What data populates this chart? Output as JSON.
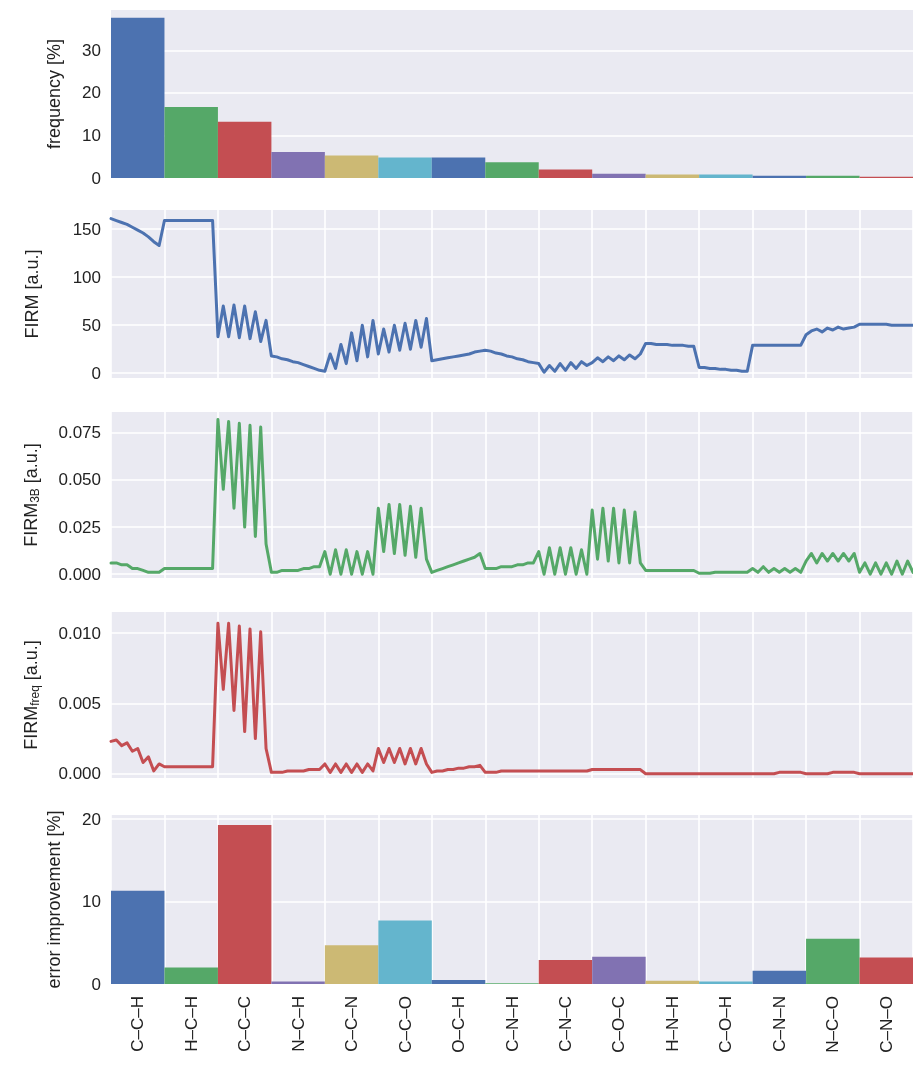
{
  "chart_data": [
    {
      "type": "bar",
      "ylabel": "frequency [%]",
      "categories": [
        null,
        null,
        null,
        null,
        null,
        null,
        null,
        null,
        null,
        null,
        null,
        null,
        null,
        null,
        null
      ],
      "values": [
        37.7,
        16.7,
        13.2,
        6.1,
        5.3,
        4.8,
        4.8,
        3.7,
        2.0,
        1.0,
        0.8,
        0.8,
        0.5,
        0.5,
        0.3
      ],
      "colors": [
        "#4c72b0",
        "#55a868",
        "#c44e52",
        "#8172b2",
        "#ccb974",
        "#64b5cd",
        "#4c72b0",
        "#55a868",
        "#c44e52",
        "#8172b2",
        "#ccb974",
        "#64b5cd",
        "#4c72b0",
        "#55a868",
        "#c44e52"
      ],
      "ylim": [
        0,
        39.5
      ],
      "yticks": [
        0,
        10,
        20,
        30
      ],
      "grid": "y",
      "tick_labels": "y"
    },
    {
      "type": "line",
      "ylabel": "FIRM [a.u.]",
      "categories": [
        null,
        null,
        null,
        null,
        null,
        null,
        null,
        null,
        null,
        null,
        null,
        null,
        null,
        null,
        null,
        null,
        null,
        null,
        null,
        null,
        null,
        null,
        null,
        null,
        null,
        null,
        null,
        null,
        null,
        null,
        null,
        null,
        null,
        null,
        null,
        null,
        null,
        null,
        null,
        null,
        null,
        null,
        null,
        null,
        null,
        null,
        null,
        null,
        null,
        null,
        null,
        null,
        null,
        null,
        null,
        null,
        null,
        null,
        null,
        null,
        null,
        null,
        null,
        null,
        null,
        null,
        null,
        null,
        null,
        null,
        null,
        null,
        null,
        null,
        null,
        null,
        null,
        null,
        null,
        null,
        null,
        null,
        null,
        null,
        null,
        null,
        null,
        null,
        null,
        null,
        null,
        null,
        null,
        null,
        null,
        null,
        null,
        null,
        null,
        null,
        null,
        null,
        null,
        null,
        null,
        null,
        null,
        null,
        null,
        null,
        null,
        null,
        null,
        null,
        null,
        null,
        null,
        null,
        null,
        null,
        null,
        null,
        null,
        null,
        null,
        null,
        null,
        null,
        null,
        null,
        null,
        null,
        null,
        null,
        null,
        null,
        null,
        null,
        null,
        null,
        null,
        null,
        null,
        null,
        null,
        null,
        null,
        null,
        null,
        null,
        null
      ],
      "ylim": [
        -5,
        170
      ],
      "yticks": [
        0,
        50,
        100,
        150
      ],
      "grid": true,
      "tick_labels": "y",
      "series": [
        {
          "color": "#4c72b0",
          "values": [
            161,
            159,
            157,
            155,
            152,
            149,
            146,
            142,
            137,
            133,
            159,
            159,
            159,
            159,
            159,
            159,
            159,
            159,
            159,
            159,
            38,
            70,
            38,
            71,
            37,
            70,
            36,
            64,
            33,
            55,
            18,
            17,
            15,
            14,
            12,
            11,
            9,
            7,
            5,
            3,
            2,
            20,
            5,
            30,
            10,
            42,
            13,
            50,
            17,
            55,
            20,
            46,
            22,
            50,
            24,
            52,
            25,
            55,
            27,
            57,
            13,
            14,
            15,
            16,
            17,
            18,
            19,
            20,
            22,
            23,
            24,
            23,
            21,
            20,
            18,
            17,
            15,
            14,
            12,
            11,
            10,
            1,
            8,
            2,
            10,
            3,
            11,
            5,
            12,
            8,
            11,
            16,
            12,
            17,
            13,
            18,
            14,
            19,
            15,
            20,
            31,
            31,
            30,
            30,
            30,
            29,
            29,
            29,
            28,
            28,
            6,
            6,
            5,
            5,
            4,
            4,
            3,
            3,
            2,
            2,
            29,
            29,
            29,
            29,
            29,
            29,
            29,
            29,
            29,
            29,
            40,
            44,
            46,
            43,
            47,
            45,
            48,
            46,
            47,
            48,
            51,
            51,
            51,
            51,
            51,
            51,
            50,
            50,
            50,
            50,
            50
          ]
        }
      ]
    },
    {
      "type": "line",
      "ylabel": "FIRM$_{3B}$ [a.u.]",
      "categories": [
        null,
        null,
        null,
        null,
        null,
        null,
        null,
        null,
        null,
        null,
        null,
        null,
        null,
        null,
        null,
        null,
        null,
        null,
        null,
        null,
        null,
        null,
        null,
        null,
        null,
        null,
        null,
        null,
        null,
        null,
        null,
        null,
        null,
        null,
        null,
        null,
        null,
        null,
        null,
        null,
        null,
        null,
        null,
        null,
        null,
        null,
        null,
        null,
        null,
        null,
        null,
        null,
        null,
        null,
        null,
        null,
        null,
        null,
        null,
        null,
        null,
        null,
        null,
        null,
        null,
        null,
        null,
        null,
        null,
        null,
        null,
        null,
        null,
        null,
        null,
        null,
        null,
        null,
        null,
        null,
        null,
        null,
        null,
        null,
        null,
        null,
        null,
        null,
        null,
        null,
        null,
        null,
        null,
        null,
        null,
        null,
        null,
        null,
        null,
        null,
        null,
        null,
        null,
        null,
        null,
        null,
        null,
        null,
        null,
        null,
        null,
        null,
        null,
        null,
        null,
        null,
        null,
        null,
        null,
        null,
        null,
        null,
        null,
        null,
        null,
        null,
        null,
        null,
        null,
        null,
        null,
        null,
        null,
        null,
        null,
        null,
        null,
        null,
        null,
        null,
        null,
        null,
        null,
        null,
        null,
        null,
        null,
        null,
        null,
        null,
        null
      ],
      "ylim": [
        -0.002,
        0.086
      ],
      "yticks": [
        {
          "value": 0,
          "label": "0.000"
        },
        0.025,
        {
          "value": 0.05,
          "label": "0.050"
        },
        0.075
      ],
      "grid": true,
      "tick_labels": "y",
      "series": [
        {
          "color": "#55a868",
          "values": [
            0.006,
            0.006,
            0.005,
            0.005,
            0.003,
            0.003,
            0.002,
            0.001,
            0.001,
            0.001,
            0.003,
            0.003,
            0.003,
            0.003,
            0.003,
            0.003,
            0.003,
            0.003,
            0.003,
            0.003,
            0.082,
            0.045,
            0.081,
            0.035,
            0.08,
            0.025,
            0.079,
            0.02,
            0.078,
            0.016,
            0.001,
            0.001,
            0.002,
            0.002,
            0.002,
            0.002,
            0.003,
            0.003,
            0.004,
            0.004,
            0.012,
            0.0,
            0.013,
            0.0,
            0.013,
            0.0,
            0.012,
            0.0,
            0.012,
            0.0,
            0.035,
            0.012,
            0.037,
            0.011,
            0.037,
            0.01,
            0.036,
            0.009,
            0.035,
            0.008,
            0.001,
            0.002,
            0.003,
            0.004,
            0.005,
            0.006,
            0.007,
            0.008,
            0.009,
            0.011,
            0.003,
            0.003,
            0.003,
            0.004,
            0.004,
            0.004,
            0.005,
            0.005,
            0.006,
            0.006,
            0.012,
            0.0,
            0.014,
            0.0,
            0.014,
            0.0,
            0.014,
            0.0,
            0.013,
            0.0,
            0.034,
            0.008,
            0.035,
            0.007,
            0.035,
            0.006,
            0.034,
            0.006,
            0.033,
            0.006,
            0.002,
            0.002,
            0.002,
            0.002,
            0.002,
            0.002,
            0.002,
            0.002,
            0.002,
            0.002,
            0.0005,
            0.0005,
            0.0005,
            0.001,
            0.001,
            0.001,
            0.001,
            0.001,
            0.001,
            0.001,
            0.003,
            0.001,
            0.004,
            0.001,
            0.003,
            0.001,
            0.003,
            0.001,
            0.003,
            0.001,
            0.007,
            0.011,
            0.006,
            0.011,
            0.007,
            0.011,
            0.007,
            0.011,
            0.007,
            0.011,
            0.001,
            0.006,
            0.0,
            0.006,
            0.0,
            0.006,
            0.0,
            0.007,
            0.0,
            0.007,
            0.001
          ]
        }
      ]
    },
    {
      "type": "line",
      "ylabel": "FIRM$_{freq}$ [a.u.]",
      "categories": [
        null,
        null,
        null,
        null,
        null,
        null,
        null,
        null,
        null,
        null,
        null,
        null,
        null,
        null,
        null,
        null,
        null,
        null,
        null,
        null,
        null,
        null,
        null,
        null,
        null,
        null,
        null,
        null,
        null,
        null,
        null,
        null,
        null,
        null,
        null,
        null,
        null,
        null,
        null,
        null,
        null,
        null,
        null,
        null,
        null,
        null,
        null,
        null,
        null,
        null,
        null,
        null,
        null,
        null,
        null,
        null,
        null,
        null,
        null,
        null,
        null,
        null,
        null,
        null,
        null,
        null,
        null,
        null,
        null,
        null,
        null,
        null,
        null,
        null,
        null,
        null,
        null,
        null,
        null,
        null,
        null,
        null,
        null,
        null,
        null,
        null,
        null,
        null,
        null,
        null,
        null,
        null,
        null,
        null,
        null,
        null,
        null,
        null,
        null,
        null,
        null,
        null,
        null,
        null,
        null,
        null,
        null,
        null,
        null,
        null,
        null,
        null,
        null,
        null,
        null,
        null,
        null,
        null,
        null,
        null,
        null,
        null,
        null,
        null,
        null,
        null,
        null,
        null,
        null,
        null,
        null,
        null,
        null,
        null,
        null,
        null,
        null,
        null,
        null,
        null,
        null,
        null,
        null,
        null,
        null,
        null,
        null,
        null,
        null,
        null,
        null
      ],
      "ylim": [
        -0.0003,
        0.0115
      ],
      "yticks": [
        {
          "value": 0,
          "label": "0.000"
        },
        0.005,
        {
          "value": 0.01,
          "label": "0.010"
        }
      ],
      "grid": true,
      "tick_labels": "y",
      "series": [
        {
          "color": "#c44e52",
          "values": [
            0.0023,
            0.0024,
            0.002,
            0.0022,
            0.0016,
            0.0018,
            0.0008,
            0.0012,
            0.0002,
            0.0007,
            0.0005,
            0.0005,
            0.0005,
            0.0005,
            0.0005,
            0.0005,
            0.0005,
            0.0005,
            0.0005,
            0.0005,
            0.0107,
            0.006,
            0.0107,
            0.0045,
            0.0105,
            0.003,
            0.0103,
            0.0025,
            0.0101,
            0.0018,
            0.0001,
            0.0001,
            0.0001,
            0.0002,
            0.0002,
            0.0002,
            0.0002,
            0.0003,
            0.0003,
            0.0003,
            0.0007,
            0.0001,
            0.0007,
            0.0001,
            0.0007,
            0.0001,
            0.0007,
            0.0001,
            0.0007,
            0.0002,
            0.0018,
            0.0008,
            0.0018,
            0.0008,
            0.0018,
            0.0007,
            0.0018,
            0.0007,
            0.0018,
            0.0007,
            0.0001,
            0.0002,
            0.0002,
            0.0003,
            0.0003,
            0.0004,
            0.0004,
            0.0005,
            0.0005,
            0.0006,
            0.0001,
            0.0001,
            0.0001,
            0.0002,
            0.0002,
            0.0002,
            0.0002,
            0.0002,
            0.0002,
            0.0002,
            0.0002,
            0.0002,
            0.0002,
            0.0002,
            0.0002,
            0.0002,
            0.0002,
            0.0002,
            0.0002,
            0.0002,
            0.0003,
            0.0003,
            0.0003,
            0.0003,
            0.0003,
            0.0003,
            0.0003,
            0.0003,
            0.0003,
            0.0003,
            0,
            0,
            0,
            0,
            0,
            0,
            0,
            0,
            0,
            0,
            0,
            0,
            0,
            0,
            0,
            0,
            0,
            0,
            0,
            0,
            0,
            0,
            0,
            0,
            0,
            0.0001,
            0.0001,
            0.0001,
            0.0001,
            0.0001,
            0,
            0,
            0,
            0,
            0,
            0.0001,
            0.0001,
            0.0001,
            0.0001,
            0.0001,
            0,
            0,
            0,
            0,
            0,
            0,
            0,
            0,
            0,
            0,
            0
          ]
        }
      ]
    },
    {
      "type": "bar",
      "ylabel": "error improvement [%]",
      "categories": [
        "C–C–H",
        "H–C–H",
        "C–C–C",
        "N–C–H",
        "C–C–N",
        "C–C–O",
        "O–C–H",
        "C–N–H",
        "C–N–C",
        "C–O–C",
        "H–N–H",
        "C–O–H",
        "C–N–N",
        "N–C–O",
        "C–N–O"
      ],
      "values": [
        11.3,
        2.0,
        19.3,
        0.3,
        4.7,
        7.7,
        0.5,
        0.1,
        2.9,
        3.3,
        0.4,
        0.3,
        1.6,
        5.5,
        3.2
      ],
      "colors": [
        "#4c72b0",
        "#55a868",
        "#c44e52",
        "#8172b2",
        "#ccb974",
        "#64b5cd",
        "#4c72b0",
        "#55a868",
        "#c44e52",
        "#8172b2",
        "#ccb974",
        "#64b5cd",
        "#4c72b0",
        "#55a868",
        "#c44e52"
      ],
      "ylim": [
        0,
        20.5
      ],
      "yticks": [
        0,
        10,
        20
      ],
      "grid": true
    }
  ]
}
